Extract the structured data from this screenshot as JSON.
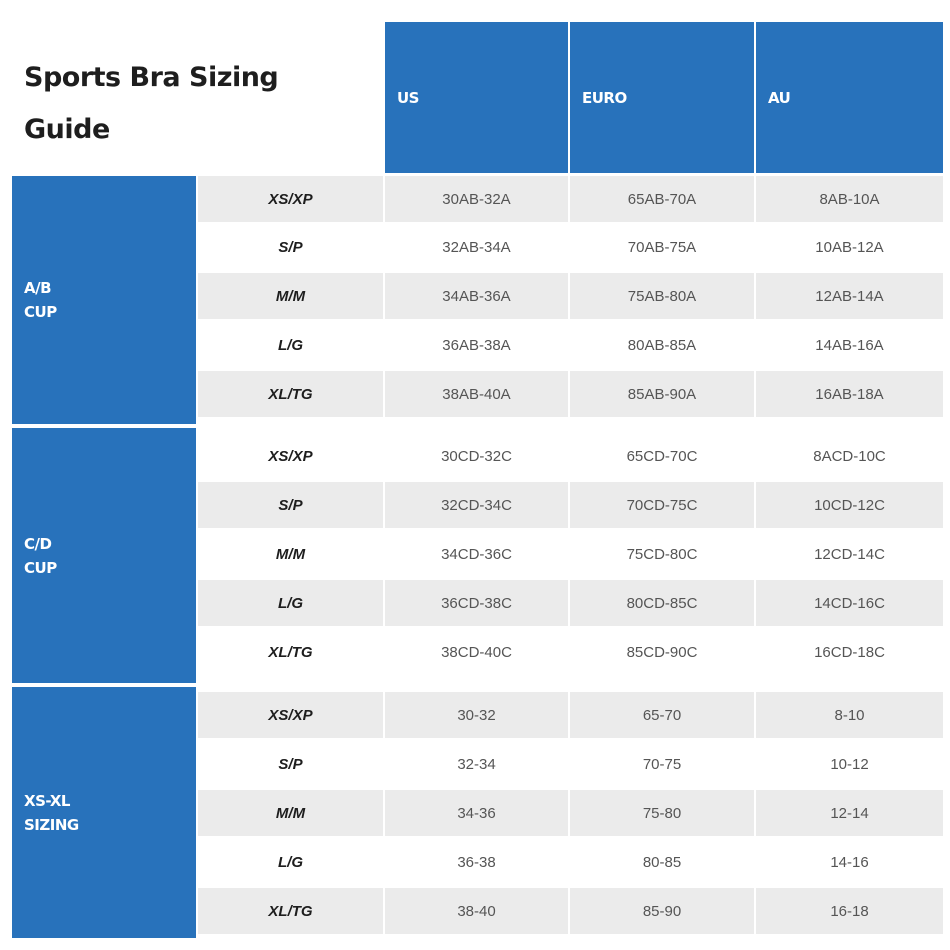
{
  "title": "Sports Bra Sizing Guide",
  "colors": {
    "header_blue": "#2872bb",
    "row_shade": "#ebebeb"
  },
  "columns": [
    "US",
    "EURO",
    "AU"
  ],
  "groups": [
    {
      "label_line1": "A/B",
      "label_line2": "CUP",
      "rows": [
        {
          "size": "XS/XP",
          "us": "30AB-32A",
          "euro": "65AB-70A",
          "au": "8AB-10A"
        },
        {
          "size": "S/P",
          "us": "32AB-34A",
          "euro": "70AB-75A",
          "au": "10AB-12A"
        },
        {
          "size": "M/M",
          "us": "34AB-36A",
          "euro": "75AB-80A",
          "au": "12AB-14A"
        },
        {
          "size": "L/G",
          "us": "36AB-38A",
          "euro": "80AB-85A",
          "au": "14AB-16A"
        },
        {
          "size": "XL/TG",
          "us": "38AB-40A",
          "euro": "85AB-90A",
          "au": "16AB-18A"
        }
      ]
    },
    {
      "label_line1": "C/D",
      "label_line2": "CUP",
      "rows": [
        {
          "size": "XS/XP",
          "us": "30CD-32C",
          "euro": "65CD-70C",
          "au": "8ACD-10C"
        },
        {
          "size": "S/P",
          "us": "32CD-34C",
          "euro": "70CD-75C",
          "au": "10CD-12C"
        },
        {
          "size": "M/M",
          "us": "34CD-36C",
          "euro": "75CD-80C",
          "au": "12CD-14C"
        },
        {
          "size": "L/G",
          "us": "36CD-38C",
          "euro": "80CD-85C",
          "au": "14CD-16C"
        },
        {
          "size": "XL/TG",
          "us": "38CD-40C",
          "euro": "85CD-90C",
          "au": "16CD-18C"
        }
      ]
    },
    {
      "label_line1": "XS-XL",
      "label_line2": "SIZING",
      "rows": [
        {
          "size": "XS/XP",
          "us": "30-32",
          "euro": "65-70",
          "au": "8-10"
        },
        {
          "size": "S/P",
          "us": "32-34",
          "euro": "70-75",
          "au": "10-12"
        },
        {
          "size": "M/M",
          "us": "34-36",
          "euro": "75-80",
          "au": "12-14"
        },
        {
          "size": "L/G",
          "us": "36-38",
          "euro": "80-85",
          "au": "14-16"
        },
        {
          "size": "XL/TG",
          "us": "38-40",
          "euro": "85-90",
          "au": "16-18"
        }
      ]
    }
  ]
}
